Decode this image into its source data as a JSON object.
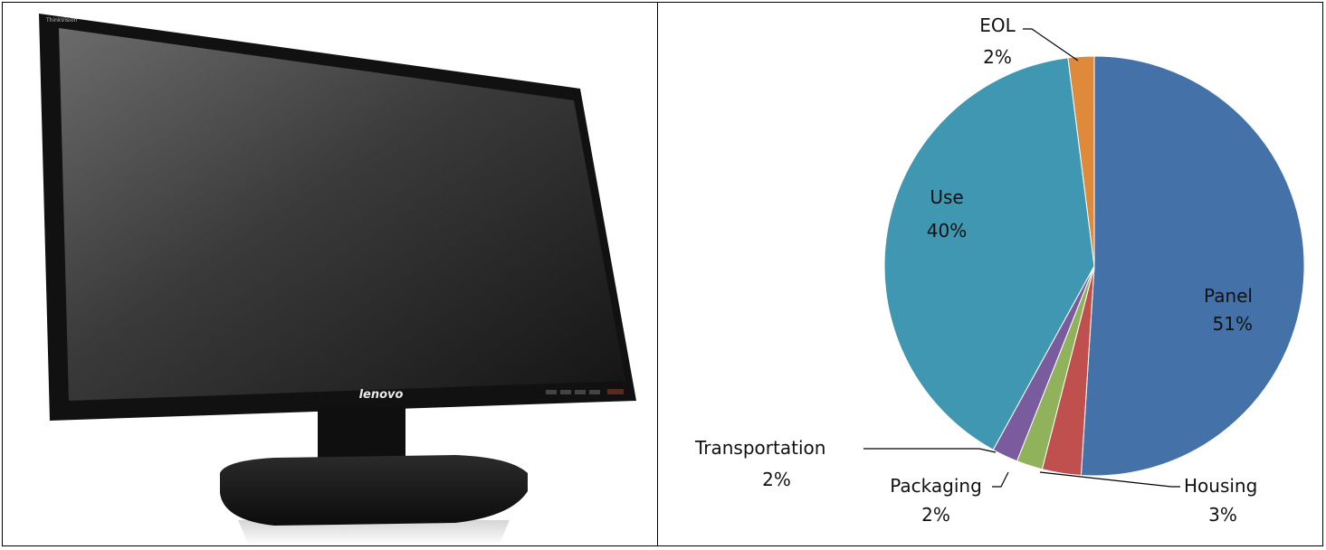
{
  "monitor": {
    "brand_text": "lenovo",
    "model_text": "ThinkVision"
  },
  "chart_data": {
    "type": "pie",
    "title": "",
    "start_angle_deg": 0,
    "direction": "clockwise",
    "slices": [
      {
        "label": "Panel",
        "value_text": "51%",
        "value": 51,
        "color": "#4472a8"
      },
      {
        "label": "Housing",
        "value_text": "3%",
        "value": 3,
        "color": "#c0504d"
      },
      {
        "label": "Packaging",
        "value_text": "2%",
        "value": 2,
        "color": "#8fb25a"
      },
      {
        "label": "Transportation",
        "value_text": "2%",
        "value": 2,
        "color": "#7a5c9e"
      },
      {
        "label": "Use",
        "value_text": "40%",
        "value": 40,
        "color": "#3f97b1"
      },
      {
        "label": "EOL",
        "value_text": "2%",
        "value": 2,
        "color": "#df8a3b"
      }
    ]
  }
}
